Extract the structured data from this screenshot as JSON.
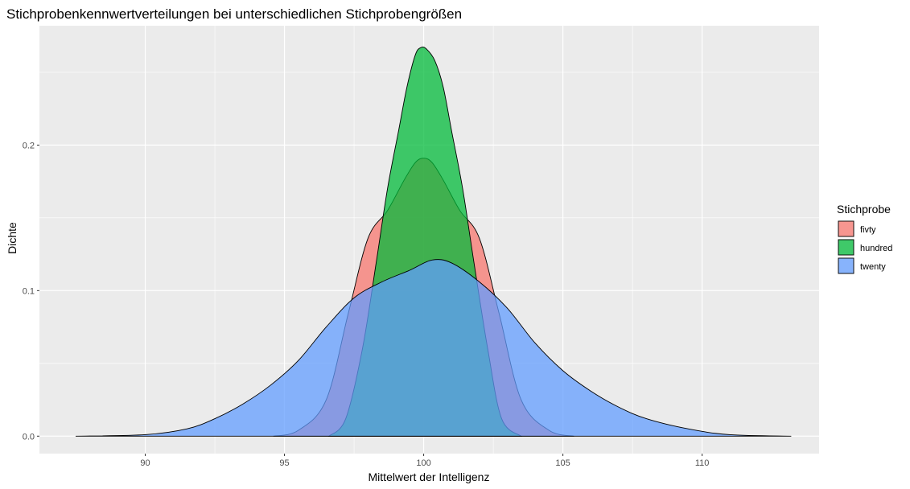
{
  "chart_data": {
    "type": "area",
    "title": "Stichprobenkennwertverteilungen bei unterschiedlichen Stichprobengrößen",
    "xlabel": "Mittelwert der Intelligenz",
    "ylabel": "Dichte",
    "xlim": [
      86.2,
      114.2
    ],
    "ylim": [
      -0.012,
      0.282
    ],
    "x_ticks": [
      90,
      95,
      100,
      105,
      110
    ],
    "x_tick_labels": [
      "90",
      "95",
      "100",
      "105",
      "110"
    ],
    "y_ticks": [
      0.0,
      0.1,
      0.2
    ],
    "y_tick_labels": [
      "0.0",
      "0.1",
      "0.2"
    ],
    "grid": true,
    "legend": {
      "title": "Stichprobe",
      "position": "right"
    },
    "series": [
      {
        "name": "fivty",
        "color": "#F8766D",
        "x": [
          94.6,
          95.5,
          96.5,
          97.3,
          98.0,
          98.7,
          99.3,
          99.7,
          100.0,
          100.3,
          100.7,
          101.3,
          102.0,
          102.7,
          103.5,
          104.5,
          105.4
        ],
        "y": [
          0.0,
          0.004,
          0.025,
          0.085,
          0.136,
          0.155,
          0.176,
          0.188,
          0.191,
          0.188,
          0.176,
          0.155,
          0.136,
          0.085,
          0.025,
          0.004,
          0.0
        ]
      },
      {
        "name": "hundred",
        "color": "#00BA38",
        "x": [
          96.6,
          97.2,
          97.8,
          98.3,
          98.7,
          99.1,
          99.4,
          99.7,
          99.9,
          100.1,
          100.4,
          100.7,
          101.0,
          101.4,
          101.8,
          102.3,
          102.8,
          103.5
        ],
        "y": [
          0.0,
          0.012,
          0.06,
          0.12,
          0.17,
          0.21,
          0.24,
          0.262,
          0.267,
          0.266,
          0.258,
          0.24,
          0.21,
          0.17,
          0.12,
          0.06,
          0.012,
          0.0
        ]
      },
      {
        "name": "twenty",
        "color": "#619CFF",
        "x": [
          87.5,
          90.0,
          91.5,
          92.5,
          93.5,
          94.5,
          95.5,
          96.5,
          97.5,
          98.5,
          99.5,
          100.3,
          101.0,
          102.0,
          103.0,
          104.0,
          105.0,
          106.0,
          107.0,
          108.0,
          109.5,
          111.0,
          113.2
        ],
        "y": [
          0.0,
          0.001,
          0.005,
          0.012,
          0.022,
          0.035,
          0.052,
          0.075,
          0.095,
          0.106,
          0.114,
          0.121,
          0.119,
          0.106,
          0.088,
          0.064,
          0.045,
          0.031,
          0.02,
          0.012,
          0.005,
          0.001,
          0.0
        ]
      }
    ]
  }
}
